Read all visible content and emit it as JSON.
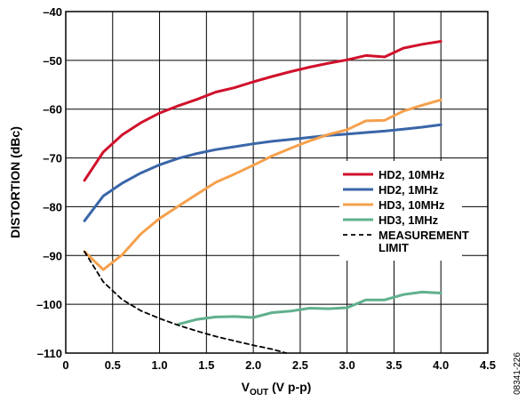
{
  "chart_data": {
    "type": "line",
    "xlabel_main": "V",
    "xlabel_sub": "OUT",
    "xlabel_rest": " (V p-p)",
    "ylabel": "DISTORTION (dBc)",
    "xlim": [
      0,
      4.5
    ],
    "ylim": [
      -110,
      -40
    ],
    "x_ticks": [
      0,
      0.5,
      1.0,
      1.5,
      2.0,
      2.5,
      3.0,
      3.5,
      4.0,
      4.5
    ],
    "x_tick_labels": [
      "0",
      "0.5",
      "1.0",
      "1.5",
      "2.0",
      "2.5",
      "3.0",
      "3.5",
      "4.0",
      "4.5"
    ],
    "y_ticks": [
      -40,
      -50,
      -60,
      -70,
      -80,
      -90,
      -100,
      -110
    ],
    "y_tick_labels": [
      "–40",
      "–50",
      "–60",
      "–70",
      "–80",
      "–90",
      "–100",
      "–110"
    ],
    "grid": true,
    "legend_position": "right-middle",
    "figure_id": "08341-226",
    "series": [
      {
        "name": "HD2, 10MHz",
        "color": "#d0112b",
        "dash": "solid",
        "x": [
          0.2,
          0.4,
          0.6,
          0.8,
          1.0,
          1.2,
          1.4,
          1.6,
          1.8,
          2.0,
          2.2,
          2.4,
          2.6,
          2.8,
          3.0,
          3.2,
          3.4,
          3.6,
          3.8,
          4.0
        ],
        "y": [
          -74.6,
          -68.8,
          -65.3,
          -62.8,
          -60.8,
          -59.3,
          -58.0,
          -56.5,
          -55.6,
          -54.4,
          -53.3,
          -52.3,
          -51.4,
          -50.6,
          -49.9,
          -49.0,
          -49.3,
          -47.5,
          -46.7,
          -46.1
        ]
      },
      {
        "name": "HD2, 1MHz",
        "color": "#3a66a8",
        "dash": "solid",
        "x": [
          0.2,
          0.4,
          0.6,
          0.8,
          1.0,
          1.2,
          1.4,
          1.6,
          1.8,
          2.0,
          2.2,
          2.4,
          2.6,
          2.8,
          3.0,
          3.2,
          3.4,
          3.6,
          3.8,
          4.0
        ],
        "y": [
          -82.9,
          -77.8,
          -75.2,
          -73.1,
          -71.4,
          -70.1,
          -69.1,
          -68.3,
          -67.7,
          -67.1,
          -66.6,
          -66.2,
          -65.8,
          -65.4,
          -65.1,
          -64.8,
          -64.5,
          -64.1,
          -63.7,
          -63.2
        ]
      },
      {
        "name": "HD3, 10MHz",
        "color": "#f5a04c",
        "dash": "solid",
        "x": [
          0.2,
          0.4,
          0.6,
          0.8,
          1.0,
          1.2,
          1.4,
          1.6,
          1.8,
          2.0,
          2.2,
          2.4,
          2.6,
          2.8,
          3.0,
          3.2,
          3.4,
          3.6,
          3.8,
          4.0
        ],
        "y": [
          -89.2,
          -92.9,
          -89.9,
          -85.6,
          -82.4,
          -79.9,
          -77.4,
          -75.0,
          -73.3,
          -71.5,
          -69.6,
          -68.0,
          -66.5,
          -65.2,
          -64.2,
          -62.4,
          -62.3,
          -60.4,
          -59.2,
          -58.1
        ]
      },
      {
        "name": "HD3, 1MHz",
        "color": "#5fb08d",
        "dash": "solid",
        "x": [
          1.2,
          1.4,
          1.6,
          1.8,
          2.0,
          2.2,
          2.4,
          2.6,
          2.8,
          3.0,
          3.2,
          3.4,
          3.6,
          3.8,
          4.0
        ],
        "y": [
          -104.1,
          -103.1,
          -102.6,
          -102.5,
          -102.7,
          -101.7,
          -101.4,
          -100.8,
          -100.9,
          -100.7,
          -99.1,
          -99.1,
          -98.0,
          -97.5,
          -97.7
        ]
      },
      {
        "name": "MEASUREMENT LIMIT",
        "legend_lines": [
          "MEASUREMENT",
          "LIMIT"
        ],
        "color": "#000000",
        "dash": "dashed",
        "x": [
          0.2,
          0.4,
          0.6,
          0.8,
          1.0,
          1.2,
          1.4,
          1.6,
          1.8,
          2.0,
          2.2,
          2.35
        ],
        "y": [
          -89.2,
          -95.4,
          -99.0,
          -101.3,
          -102.9,
          -104.3,
          -105.5,
          -106.6,
          -107.5,
          -108.4,
          -109.2,
          -110.0
        ]
      }
    ]
  }
}
